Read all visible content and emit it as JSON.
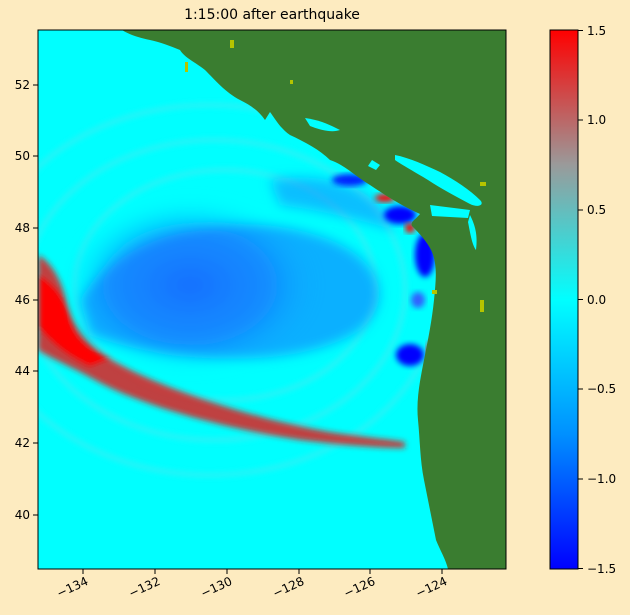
{
  "title": "1:15:00 after earthquake",
  "x_ticks": [
    "−134",
    "−132",
    "−130",
    "−128",
    "−126",
    "−124"
  ],
  "y_ticks": [
    "52",
    "50",
    "48",
    "46",
    "44",
    "42",
    "40"
  ],
  "colorbar": {
    "ticks": [
      "1.5",
      "1.0",
      "0.5",
      "0.0",
      "−0.5",
      "−1.0",
      "−1.5"
    ],
    "colors": [
      "#0000ff",
      "#0090ff",
      "#00ffff",
      "#9a9a9a",
      "#ff0000"
    ]
  },
  "colors": {
    "background": "#fdebc0",
    "ocean": "#00ffff",
    "land": "#3a7d30",
    "positive": "#ff0000",
    "negative": "#0000ff"
  }
}
